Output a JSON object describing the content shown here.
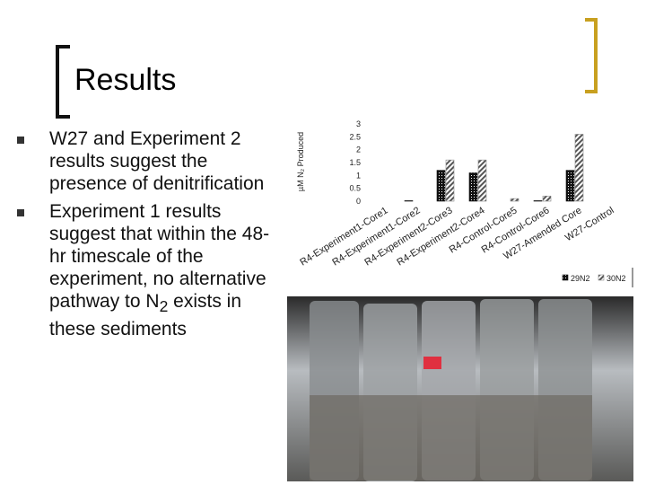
{
  "slide": {
    "title": "Results",
    "bullets": [
      {
        "text": "W27 and Experiment 2 results suggest the presence of denitrification"
      },
      {
        "text": "Experiment 1 results suggest that within the 48-hr timescale of the experiment, no alternative pathway to N",
        "subscript": "2",
        "text_after": " exists in these sediments"
      }
    ]
  },
  "chart_data": {
    "type": "bar",
    "y_label": "µM N₂ Produced",
    "categories": [
      "R4-Experiment1-Core1",
      "R4-Experiment1-Core2",
      "R4-Experiment2-Core3",
      "R4-Experiment2-Core4",
      "R4-Control-Core5",
      "R4-Control-Core6",
      "W27-Amended Core",
      "W27-Control"
    ],
    "series": [
      {
        "name": "29N2",
        "color": "#111111",
        "values": [
          0,
          0.02,
          1.2,
          1.1,
          0,
          0.02,
          1.2,
          0
        ]
      },
      {
        "name": "30N2",
        "color": "#888888",
        "values": [
          0,
          0,
          1.6,
          1.6,
          0.1,
          0.2,
          2.6,
          0
        ]
      }
    ],
    "ylim": [
      0,
      3
    ],
    "yticks": [
      0,
      0.5,
      1,
      1.5,
      2,
      2.5,
      3
    ],
    "grid": false,
    "legend": "bottom"
  }
}
